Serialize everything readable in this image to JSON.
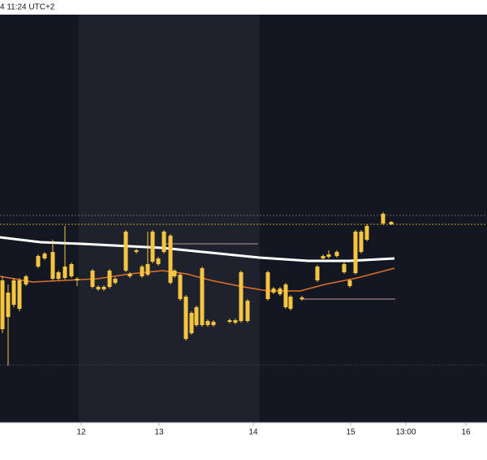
{
  "chart_data": {
    "type": "candlestick",
    "title": "4 11:24 UTC+2",
    "color": "#f5c542",
    "xlim": [
      0,
      600
    ],
    "ylim": [
      0,
      502
    ],
    "xticks": [
      {
        "value": 100,
        "label": "12"
      },
      {
        "value": 196,
        "label": "13"
      },
      {
        "value": 312,
        "label": "14"
      },
      {
        "value": 432,
        "label": "15"
      },
      {
        "value": 500,
        "label": "13:00"
      },
      {
        "value": 574,
        "label": "16"
      }
    ],
    "x": [
      3,
      10,
      17,
      24,
      32,
      47,
      55,
      65,
      72,
      80,
      88,
      95,
      114,
      121,
      128,
      135,
      142,
      155,
      160,
      168,
      175,
      182,
      188,
      195,
      202,
      210,
      215,
      222,
      229,
      236,
      242,
      249,
      256,
      263,
      283,
      290,
      297,
      305,
      330,
      337,
      345,
      352,
      358,
      372,
      391,
      398,
      405,
      415,
      424,
      431,
      438,
      445,
      452,
      472,
      482
    ],
    "open": [
      175,
      160,
      175,
      140,
      170,
      192,
      202,
      177,
      185,
      178,
      195,
      177,
      187,
      167,
      164,
      167,
      177,
      187,
      183,
      212,
      180,
      182,
      198,
      202,
      210,
      230,
      180,
      182,
      155,
      110,
      142,
      120,
      125,
      120,
      124,
      126,
      125,
      150,
      152,
      165,
      158,
      170,
      155,
      152,
      175,
      202,
      204,
      205,
      195,
      168,
      184,
      210,
      225,
      257,
      247
    ],
    "high": [
      180,
      170,
      178,
      178,
      182,
      207,
      210,
      225,
      187,
      242,
      197,
      179,
      189,
      169,
      169,
      189,
      179,
      237,
      185,
      214,
      194,
      235,
      237,
      204,
      237,
      232,
      189,
      184,
      157,
      137,
      144,
      192,
      127,
      126,
      128,
      128,
      187,
      152,
      187,
      167,
      167,
      172,
      157,
      156,
      194,
      207,
      212,
      212,
      197,
      177,
      237,
      237,
      244,
      259,
      248
    ],
    "low": [
      110,
      70,
      142,
      137,
      168,
      190,
      200,
      175,
      175,
      176,
      178,
      168,
      165,
      162,
      162,
      165,
      170,
      185,
      178,
      208,
      178,
      180,
      196,
      193,
      208,
      170,
      178,
      150,
      101,
      108,
      118,
      118,
      118,
      118,
      122,
      121,
      123,
      123,
      150,
      158,
      156,
      140,
      138,
      150,
      173,
      200,
      202,
      203,
      183,
      166,
      182,
      208,
      223,
      243,
      243
    ],
    "close": [
      115,
      130,
      145,
      175,
      180,
      205,
      208,
      210,
      177,
      192,
      180,
      175,
      167,
      164,
      167,
      187,
      172,
      235,
      180,
      210,
      192,
      195,
      235,
      195,
      235,
      172,
      187,
      152,
      103,
      135,
      120,
      190,
      120,
      124,
      126,
      123,
      185,
      125,
      185,
      160,
      165,
      142,
      140,
      154,
      192,
      205,
      207,
      210,
      185,
      175,
      235,
      235,
      242,
      245,
      244
    ],
    "lines": [
      {
        "color": "#ffffff",
        "x": [
          0,
          50,
          100,
          200,
          250,
          320,
          380,
          430,
          486
        ],
        "values": [
          228,
          222,
          220,
          215,
          210,
          203,
          199,
          199,
          202
        ]
      },
      {
        "color": "#e0702a",
        "x": [
          0,
          40,
          80,
          120,
          160,
          200,
          230,
          260,
          300,
          330,
          370,
          400,
          440,
          486
        ],
        "values": [
          180,
          173,
          175,
          177,
          183,
          187,
          183,
          175,
          167,
          162,
          162,
          170,
          178,
          190
        ]
      }
    ],
    "levels": [
      {
        "value": 255,
        "color": "#5d606b"
      },
      {
        "value": 244,
        "color": "#c9a227"
      },
      {
        "value": 71,
        "color": "#3a3e4a"
      }
    ]
  }
}
